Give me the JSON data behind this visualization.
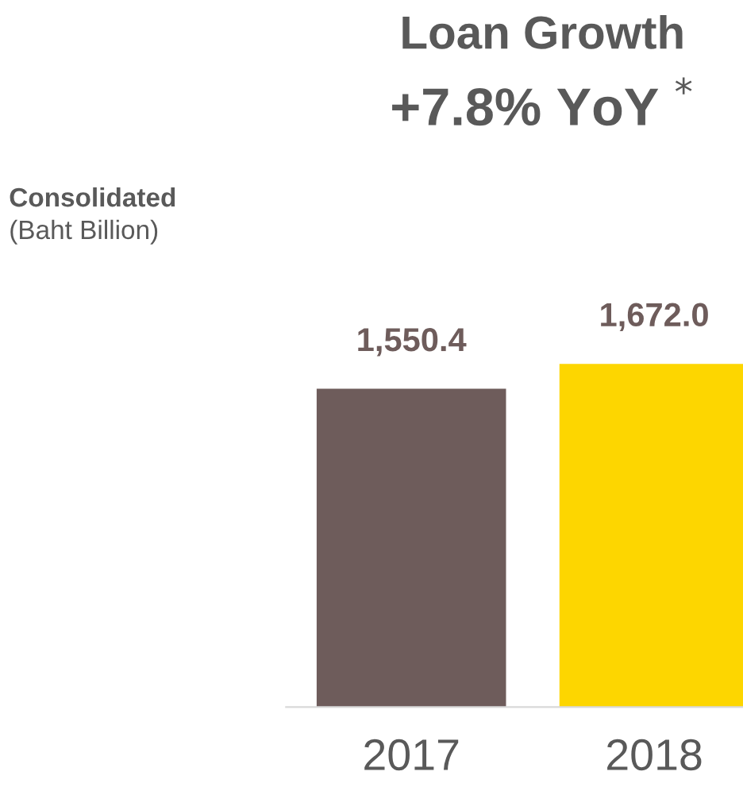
{
  "chart_data": {
    "type": "bar",
    "title": "Loan Growth",
    "subtitle": "+7.8% YoY $^{*}$",
    "annotations": [
      "Consolidated",
      "(Baht Billion)"
    ],
    "categories": [
      "2017",
      "2018"
    ],
    "values": [
      1550.4,
      1672.0
    ],
    "colors": [
      "#6e5c5b",
      "#fdd600"
    ],
    "value_labels": [
      "1,550.4",
      "1,672.0"
    ],
    "tick_labels": "x",
    "grid": false,
    "legend": false
  }
}
